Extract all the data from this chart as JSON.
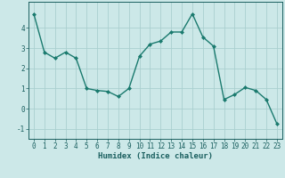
{
  "x": [
    0,
    1,
    2,
    3,
    4,
    5,
    6,
    7,
    8,
    9,
    10,
    11,
    12,
    13,
    14,
    15,
    16,
    17,
    18,
    19,
    20,
    21,
    22,
    23
  ],
  "y": [
    4.7,
    2.8,
    2.5,
    2.8,
    2.5,
    1.0,
    0.9,
    0.85,
    0.6,
    1.0,
    2.6,
    3.2,
    3.35,
    3.8,
    3.8,
    4.7,
    3.55,
    3.1,
    0.45,
    0.7,
    1.05,
    0.9,
    0.45,
    -0.75
  ],
  "line_color": "#1a7a6e",
  "marker": "D",
  "marker_size": 2.0,
  "bg_color": "#cce8e8",
  "grid_color": "#aacfcf",
  "xlabel": "Humidex (Indice chaleur)",
  "ylim": [
    -1.5,
    5.3
  ],
  "xlim": [
    -0.5,
    23.5
  ],
  "yticks": [
    -1,
    0,
    1,
    2,
    3,
    4
  ],
  "xticks": [
    0,
    1,
    2,
    3,
    4,
    5,
    6,
    7,
    8,
    9,
    10,
    11,
    12,
    13,
    14,
    15,
    16,
    17,
    18,
    19,
    20,
    21,
    22,
    23
  ],
  "tick_color": "#1a5f5f",
  "tick_fontsize": 5.5,
  "xlabel_fontsize": 6.5,
  "line_width": 1.0,
  "spine_color": "#1a5f5f"
}
